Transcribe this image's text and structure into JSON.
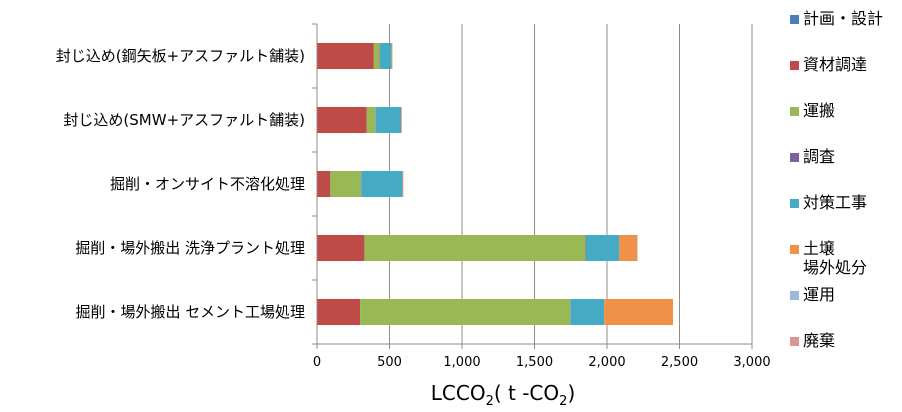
{
  "chart_data": {
    "type": "bar",
    "orientation": "horizontal",
    "stacked": true,
    "categories": [
      "封じ込め(鋼矢板+アスファルト舗装)",
      "封じ込め(SMW+アスファルト舗装)",
      "掘削・オンサイト不溶化処理",
      "掘削・場外搬出 洗浄プラント処理",
      "掘削・場外搬出 セメント工場処理"
    ],
    "series": [
      {
        "name": "計画・設計",
        "color": "#4a7ebb",
        "values": [
          2,
          2,
          2,
          2,
          2
        ]
      },
      {
        "name": "資材調達",
        "color": "#be4b48",
        "values": [
          390,
          340,
          90,
          325,
          295
        ]
      },
      {
        "name": "運搬",
        "color": "#98b954",
        "values": [
          40,
          60,
          210,
          1525,
          1450
        ]
      },
      {
        "name": "調査",
        "color": "#7d60a0",
        "values": [
          3,
          3,
          3,
          3,
          3
        ]
      },
      {
        "name": "対策工事",
        "color": "#46aac5",
        "values": [
          80,
          175,
          285,
          230,
          230
        ]
      },
      {
        "name": "土壌\n場外処分",
        "color": "#f0914a",
        "values": [
          5,
          5,
          5,
          125,
          475
        ]
      },
      {
        "name": "運用",
        "color": "#9cb8e0",
        "values": [
          0,
          0,
          0,
          0,
          0
        ]
      },
      {
        "name": "廃棄",
        "color": "#d99694",
        "values": [
          0,
          0,
          0,
          0,
          0
        ]
      }
    ],
    "xlim": [
      0,
      3000
    ],
    "xticks": [
      0,
      500,
      1000,
      1500,
      2000,
      2500,
      3000
    ],
    "xtick_labels": [
      "0",
      "500",
      "1,000",
      "1,500",
      "2,000",
      "2,500",
      "3,000"
    ],
    "xlabel": {
      "main": "LCCO",
      "sub": "2",
      "mid": "( t -CO",
      "sub2": "2",
      "end": ")"
    },
    "grid": "vertical",
    "legend_position": "right"
  }
}
